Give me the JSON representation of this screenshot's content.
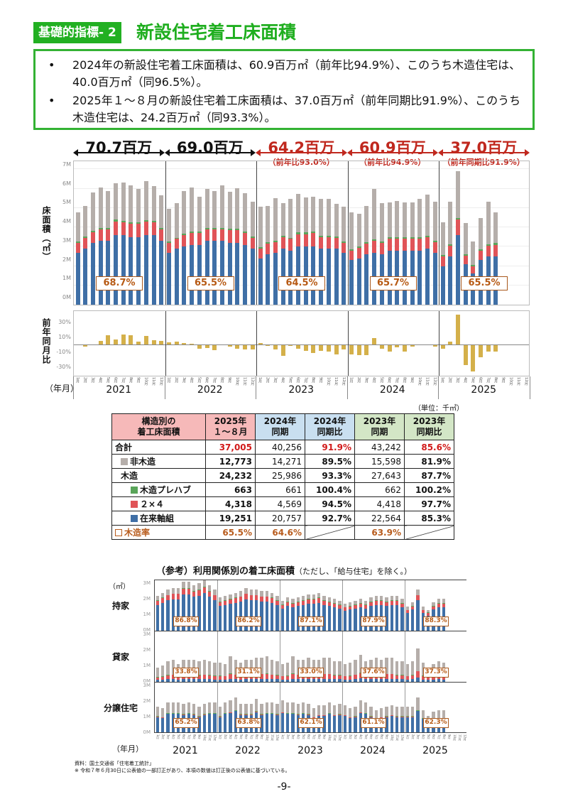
{
  "header": {
    "badge": "基礎的指標- 2",
    "title": "新設住宅着工床面積"
  },
  "summary": {
    "bullets": [
      "2024年の新設住宅着工床面積は、60.9百万㎡（前年比94.9%）、このうち木造住宅は、40.0百万㎡（同96.5%）。",
      "2025年１～８月の新設住宅着工床面積は、37.0百万㎡（前年同期比91.9%）、このうち木造住宅は、24.2百万㎡（同93.3%）。"
    ]
  },
  "periods": [
    {
      "year": "2021",
      "total": "70.7百万",
      "sub": "",
      "color": "#111111",
      "wood_ratio": "68.7%"
    },
    {
      "year": "2022",
      "total": "69.0百万",
      "sub": "",
      "color": "#111111",
      "wood_ratio": "65.5%"
    },
    {
      "year": "2023",
      "total": "64.2百万",
      "sub": "（前年比93.0%）",
      "color": "#c0281e",
      "wood_ratio": "64.5%"
    },
    {
      "year": "2024",
      "total": "60.9百万",
      "sub": "（前年比94.9%）",
      "color": "#c0281e",
      "wood_ratio": "65.7%"
    },
    {
      "year": "2025",
      "total": "37.0百万",
      "sub": "（前年同期比91.9%）",
      "color": "#c0281e",
      "wood_ratio": "65.5%"
    }
  ],
  "axes": {
    "main_ylabel": "床面積（㎡）",
    "main_yticks": [
      "7M",
      "6M",
      "5M",
      "4M",
      "3M",
      "2M",
      "1M",
      "0M"
    ],
    "yoy_ylabel": "前年同月比",
    "yoy_yticks": [
      "30%",
      "10%",
      "-10%",
      "-30%"
    ],
    "xlabel": "（年月）",
    "unit": "（単位：千㎡）"
  },
  "chart_data": [
    {
      "type": "bar",
      "title": "新設住宅着工床面積（月次・構造別）",
      "xlabel": "年月",
      "ylabel": "床面積（㎡）",
      "ylim": [
        0,
        7000000
      ],
      "categories": [
        "2021-01",
        "2021-02",
        "2021-03",
        "2021-04",
        "2021-05",
        "2021-06",
        "2021-07",
        "2021-08",
        "2021-09",
        "2021-10",
        "2021-11",
        "2021-12",
        "2022-01",
        "2022-02",
        "2022-03",
        "2022-04",
        "2022-05",
        "2022-06",
        "2022-07",
        "2022-08",
        "2022-09",
        "2022-10",
        "2022-11",
        "2022-12",
        "2023-01",
        "2023-02",
        "2023-03",
        "2023-04",
        "2023-05",
        "2023-06",
        "2023-07",
        "2023-08",
        "2023-09",
        "2023-10",
        "2023-11",
        "2023-12",
        "2024-01",
        "2024-02",
        "2024-03",
        "2024-04",
        "2024-05",
        "2024-06",
        "2024-07",
        "2024-08",
        "2024-09",
        "2024-10",
        "2024-11",
        "2024-12",
        "2025-01",
        "2025-02",
        "2025-03",
        "2025-04",
        "2025-05",
        "2025-06",
        "2025-07",
        "2025-08"
      ],
      "series": [
        {
          "name": "在来軸組",
          "color": "#3f6fa6",
          "values": [
            2.7,
            2.9,
            3.2,
            3.3,
            3.3,
            3.6,
            3.6,
            3.5,
            3.5,
            3.6,
            3.6,
            3.3,
            2.7,
            2.9,
            3.0,
            3.1,
            3.1,
            3.3,
            3.3,
            3.3,
            3.2,
            3.2,
            3.1,
            2.9,
            2.4,
            2.6,
            2.7,
            2.9,
            2.8,
            3.0,
            3.0,
            3.0,
            2.9,
            2.9,
            2.9,
            2.7,
            2.3,
            2.4,
            2.6,
            2.7,
            2.6,
            2.8,
            2.8,
            2.8,
            2.8,
            2.8,
            2.9,
            2.7,
            2.0,
            2.5,
            3.6,
            2.1,
            1.6,
            2.3,
            2.5,
            2.5
          ]
        },
        {
          "name": "２×４",
          "color": "#e05458",
          "values": [
            0.5,
            0.55,
            0.55,
            0.6,
            0.6,
            0.7,
            0.65,
            0.7,
            0.7,
            0.7,
            0.65,
            0.6,
            0.5,
            0.5,
            0.6,
            0.6,
            0.6,
            0.6,
            0.6,
            0.6,
            0.65,
            0.65,
            0.6,
            0.55,
            0.5,
            0.55,
            0.55,
            0.6,
            0.6,
            0.65,
            0.65,
            0.7,
            0.6,
            0.6,
            0.55,
            0.5,
            0.5,
            0.55,
            0.55,
            0.6,
            0.6,
            0.6,
            0.6,
            0.6,
            0.6,
            0.6,
            0.6,
            0.55,
            0.5,
            0.55,
            0.8,
            0.45,
            0.4,
            0.5,
            0.55,
            0.6
          ]
        },
        {
          "name": "木造プレハブ",
          "color": "#5aa55a",
          "values": [
            0.06,
            0.06,
            0.07,
            0.08,
            0.08,
            0.1,
            0.08,
            0.08,
            0.08,
            0.08,
            0.08,
            0.07,
            0.06,
            0.06,
            0.07,
            0.07,
            0.07,
            0.08,
            0.08,
            0.08,
            0.08,
            0.08,
            0.08,
            0.07,
            0.06,
            0.07,
            0.07,
            0.07,
            0.07,
            0.08,
            0.08,
            0.08,
            0.07,
            0.07,
            0.07,
            0.06,
            0.06,
            0.06,
            0.07,
            0.08,
            0.07,
            0.08,
            0.08,
            0.08,
            0.08,
            0.08,
            0.08,
            0.07,
            0.06,
            0.07,
            0.09,
            0.07,
            0.06,
            0.07,
            0.08,
            0.08
          ]
        },
        {
          "name": "非木造",
          "color": "#b5aeaa",
          "values": [
            1.5,
            1.6,
            2.0,
            2.1,
            1.9,
            1.9,
            2.0,
            1.9,
            1.7,
            2.0,
            1.8,
            1.7,
            1.7,
            1.8,
            2.2,
            2.3,
            1.8,
            2.0,
            1.9,
            2.2,
            1.9,
            2.1,
            2.0,
            1.8,
            2.1,
            1.9,
            2.2,
            1.7,
            2.0,
            2.0,
            1.8,
            1.8,
            1.9,
            1.9,
            1.7,
            1.8,
            1.9,
            1.7,
            1.9,
            2.6,
            2.0,
            1.8,
            1.9,
            1.8,
            1.8,
            2.0,
            2.1,
            2.0,
            1.7,
            2.2,
            2.4,
            1.6,
            1.2,
            1.6,
            2.2,
            1.6
          ]
        }
      ],
      "annotations": [
        "70.7百万",
        "69.0百万",
        "64.2百万（前年比93.0%）",
        "60.9百万（前年比94.9%）",
        "37.0百万（前年同期比91.9%）",
        "木造率 68.7%",
        "65.5%",
        "64.5%",
        "65.7%",
        "65.5%"
      ]
    },
    {
      "type": "bar",
      "title": "前年同月比",
      "ylabel": "前年同月比",
      "ylim": [
        -40,
        45
      ],
      "categories": [
        "2021-01",
        "2021-02",
        "2021-03",
        "2021-04",
        "2021-05",
        "2021-06",
        "2021-07",
        "2021-08",
        "2021-09",
        "2021-10",
        "2021-11",
        "2021-12",
        "2022-01",
        "2022-02",
        "2022-03",
        "2022-04",
        "2022-05",
        "2022-06",
        "2022-07",
        "2022-08",
        "2022-09",
        "2022-10",
        "2022-11",
        "2022-12",
        "2023-01",
        "2023-02",
        "2023-03",
        "2023-04",
        "2023-05",
        "2023-06",
        "2023-07",
        "2023-08",
        "2023-09",
        "2023-10",
        "2023-11",
        "2023-12",
        "2024-01",
        "2024-02",
        "2024-03",
        "2024-04",
        "2024-05",
        "2024-06",
        "2024-07",
        "2024-08",
        "2024-09",
        "2024-10",
        "2024-11",
        "2024-12",
        "2025-01",
        "2025-02",
        "2025-03",
        "2025-04",
        "2025-05",
        "2025-06",
        "2025-07",
        "2025-08"
      ],
      "values": [
        0,
        -2,
        0,
        5,
        12,
        7,
        13,
        12,
        4,
        11,
        6,
        5,
        3,
        4,
        2,
        1,
        -5,
        -4,
        -7,
        0,
        -2,
        -5,
        -6,
        -6,
        2,
        -1,
        -6,
        -14,
        -1,
        -5,
        -8,
        -10,
        -8,
        -9,
        -12,
        -6,
        -12,
        -13,
        -13,
        9,
        -5,
        -9,
        -3,
        -9,
        -2,
        0,
        0,
        -2,
        -5,
        4,
        40,
        -27,
        -35,
        -16,
        -9,
        -9
      ],
      "color": "#d4b04a"
    }
  ],
  "table": {
    "headers": [
      {
        "label": "構造別の\n着工床面積",
        "bg": "#f6b9b9"
      },
      {
        "label": "2025年\n１～８月",
        "bg": "#f6b9b9"
      },
      {
        "label": "2024年\n同期",
        "bg": "#c9dff0"
      },
      {
        "label": "2024年\n同期比",
        "bg": "#c9dff0"
      },
      {
        "label": "2023年\n同期",
        "bg": "#d3e6c6"
      },
      {
        "label": "2023年\n同期比",
        "bg": "#d3e6c6"
      }
    ],
    "rows": [
      {
        "label": "合計",
        "c1": "37,005",
        "c2": "40,256",
        "c3": "91.9%",
        "c4": "43,242",
        "c5": "85.6%"
      },
      {
        "label": "非木造",
        "c1": "12,773",
        "c2": "14,271",
        "c3": "89.5%",
        "c4": "15,598",
        "c5": "81.9%"
      },
      {
        "label": "木造",
        "c1": "24,232",
        "c2": "25,986",
        "c3": "93.3%",
        "c4": "27,643",
        "c5": "87.7%"
      },
      {
        "label": "木造プレハブ",
        "c1": "663",
        "c2": "661",
        "c3": "100.4%",
        "c4": "662",
        "c5": "100.2%"
      },
      {
        "label": "２×４",
        "c1": "4,318",
        "c2": "4,569",
        "c3": "94.5%",
        "c4": "4,418",
        "c5": "97.7%"
      },
      {
        "label": "在来軸組",
        "c1": "19,251",
        "c2": "20,757",
        "c3": "92.7%",
        "c4": "22,564",
        "c5": "85.3%"
      },
      {
        "label": "木造率",
        "c1": "65.5%",
        "c2": "64.6%",
        "c3": "",
        "c4": "63.9%",
        "c5": ""
      }
    ]
  },
  "reference": {
    "title": "（参考）利用関係別の着工床面積",
    "note": "（ただし、「給与住宅」を除く。）",
    "unit": "（㎡）",
    "yticks": [
      "3M",
      "2M",
      "1M",
      "0M"
    ],
    "panels": [
      {
        "label": "持家",
        "ratios": [
          "86.8%",
          "86.2%",
          "87.1%",
          "87.9%",
          "88.3%"
        ]
      },
      {
        "label": "貸家",
        "ratios": [
          "33.8%",
          "31.1%",
          "33.0%",
          "37.6%",
          "37.3%"
        ]
      },
      {
        "label": "分譲住宅",
        "ratios": [
          "65.2%",
          "63.8%",
          "62.1%",
          "61.1%",
          "62.3%"
        ]
      }
    ],
    "xlabel": "（年月）",
    "years": [
      "2021",
      "2022",
      "2023",
      "2024",
      "2025"
    ]
  },
  "footer": {
    "source": "資料：国土交通省「住宅着工統計」",
    "note": "※ 令和７年６月30日に公表値の一部訂正があり、本項の数値は訂正後の公表値に基づいている。",
    "page": "-9-"
  }
}
